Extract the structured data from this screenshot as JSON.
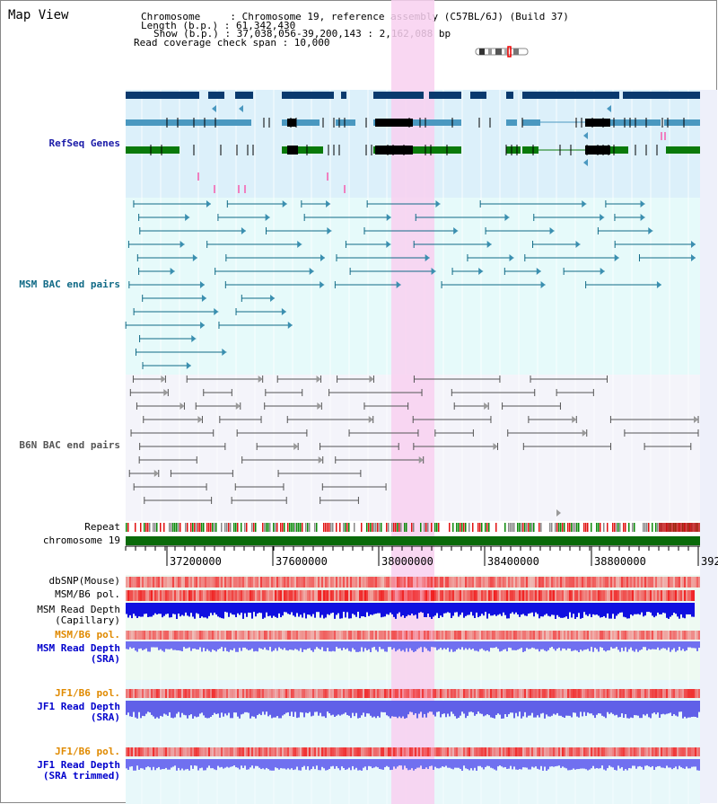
{
  "view_title": "Map View",
  "info": {
    "chromosome": "Chromosome     : Chromosome 19, reference assembly (C57BL/6J) (Build 37)",
    "length": "Length (b.p.) : 61,342,430",
    "show": "Show (b.p.) : 37,038,056-39,200,143 : 2,162,088 bp",
    "coverage": "Read coverage check span : 10,000"
  },
  "tracks": {
    "refseq": "RefSeq Genes",
    "msm_bac": "MSM BAC end pairs",
    "b6n_bac": "B6N BAC end pairs",
    "repeat": "Repeat",
    "chromosome": "chromosome 19",
    "dbsnp": "dbSNP(Mouse)",
    "msm_pol": "MSM/B6 pol.",
    "msm_depth_cap_1": "MSM Read Depth",
    "msm_depth_cap_2": "(Capillary)",
    "msm_pol_2": "MSM/B6 pol.",
    "msm_depth_sra_1": "MSM Read Depth",
    "msm_depth_sra_2": "(SRA)",
    "jf1_pol": "JF1/B6 pol.",
    "jf1_depth_sra_1": "JF1 Read Depth",
    "jf1_depth_sra_2": "(SRA)",
    "jf1_pol_2": "JF1/B6 pol.",
    "jf1_depth_trim_1": "JF1 Read Depth",
    "jf1_depth_trim_2": "(SRA trimmed)"
  },
  "axis_ticks": [
    "37200000",
    "37600000",
    "38000000",
    "38400000",
    "38800000",
    "392"
  ],
  "colors": {
    "refseq_bg": "#dcf0fa",
    "msm_bg": "#e6fafa",
    "b6n_bg": "#f4f4fa",
    "highlight": "#f8d0f0",
    "navy_gene": "#0a3a6e",
    "light_gene": "#4a98c0",
    "green_gene": "#0a7a0a",
    "chromosome_bar": "#0a6a0a"
  }
}
